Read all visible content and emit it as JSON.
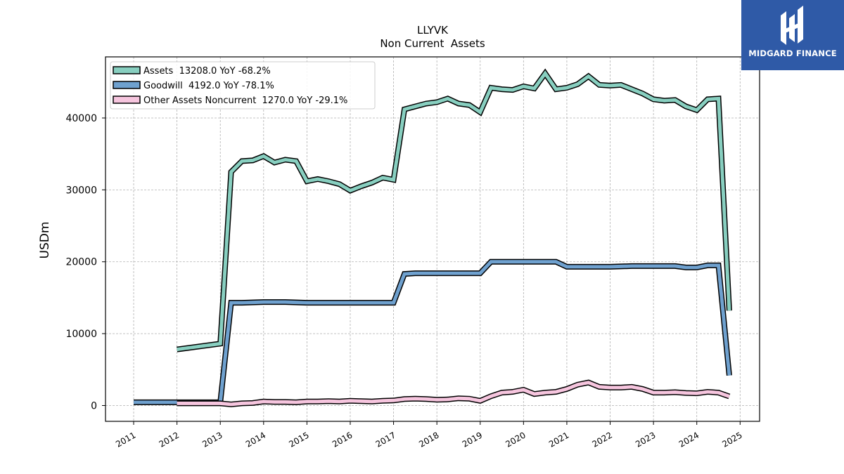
{
  "brand": {
    "name": "MIDGARD FINANCE",
    "bg_color": "#2f5aa7"
  },
  "chart_data": {
    "type": "line",
    "title": "LLYVK",
    "subtitle": "Non Current  Assets",
    "xlabel": "",
    "ylabel": "USDm",
    "xlim": [
      2010.35,
      2025.45
    ],
    "ylim": [
      -2200,
      48500
    ],
    "x_ticks": [
      "2011",
      "2012",
      "2013",
      "2014",
      "2015",
      "2016",
      "2017",
      "2018",
      "2019",
      "2020",
      "2021",
      "2022",
      "2023",
      "2024",
      "2025"
    ],
    "y_ticks": [
      0,
      10000,
      20000,
      30000,
      40000
    ],
    "y_tick_labels": [
      "0",
      "10000",
      "20000",
      "30000",
      "40000"
    ],
    "grid": true,
    "legend_position": "top-left",
    "series": [
      {
        "name": "Assets  13208.0 YoY -68.2%",
        "color": "#88cfc0",
        "points": [
          [
            2012.0,
            7800
          ],
          [
            2013.0,
            8600
          ],
          [
            2013.25,
            32500
          ],
          [
            2013.5,
            34000
          ],
          [
            2013.75,
            34100
          ],
          [
            2014.0,
            34700
          ],
          [
            2014.25,
            33800
          ],
          [
            2014.5,
            34200
          ],
          [
            2014.75,
            34000
          ],
          [
            2015.0,
            31200
          ],
          [
            2015.25,
            31500
          ],
          [
            2015.5,
            31200
          ],
          [
            2015.75,
            30800
          ],
          [
            2016.0,
            29900
          ],
          [
            2016.25,
            30500
          ],
          [
            2016.5,
            31000
          ],
          [
            2016.75,
            31700
          ],
          [
            2017.0,
            31400
          ],
          [
            2017.25,
            41200
          ],
          [
            2017.5,
            41600
          ],
          [
            2017.75,
            42000
          ],
          [
            2018.0,
            42200
          ],
          [
            2018.25,
            42700
          ],
          [
            2018.5,
            42000
          ],
          [
            2018.75,
            41800
          ],
          [
            2019.0,
            40800
          ],
          [
            2019.25,
            44200
          ],
          [
            2019.5,
            44000
          ],
          [
            2019.75,
            43900
          ],
          [
            2020.0,
            44400
          ],
          [
            2020.25,
            44100
          ],
          [
            2020.5,
            46200
          ],
          [
            2020.75,
            44000
          ],
          [
            2021.0,
            44200
          ],
          [
            2021.25,
            44700
          ],
          [
            2021.5,
            45800
          ],
          [
            2021.75,
            44600
          ],
          [
            2022.0,
            44500
          ],
          [
            2022.25,
            44600
          ],
          [
            2022.5,
            44000
          ],
          [
            2022.75,
            43400
          ],
          [
            2023.0,
            42600
          ],
          [
            2023.25,
            42400
          ],
          [
            2023.5,
            42500
          ],
          [
            2023.75,
            41600
          ],
          [
            2024.0,
            41100
          ],
          [
            2024.25,
            42600
          ],
          [
            2024.5,
            42700
          ],
          [
            2024.75,
            13208
          ]
        ]
      },
      {
        "name": "Goodwill  4192.0 YoY -78.1%",
        "color": "#6fa1cf",
        "points": [
          [
            2011.0,
            450
          ],
          [
            2013.0,
            450
          ],
          [
            2013.25,
            14300
          ],
          [
            2013.5,
            14300
          ],
          [
            2014.0,
            14400
          ],
          [
            2014.5,
            14400
          ],
          [
            2015.0,
            14300
          ],
          [
            2016.0,
            14300
          ],
          [
            2016.5,
            14300
          ],
          [
            2017.0,
            14300
          ],
          [
            2017.25,
            18300
          ],
          [
            2017.5,
            18400
          ],
          [
            2018.0,
            18400
          ],
          [
            2018.5,
            18400
          ],
          [
            2019.0,
            18400
          ],
          [
            2019.25,
            20000
          ],
          [
            2019.75,
            20000
          ],
          [
            2020.0,
            20000
          ],
          [
            2020.5,
            20000
          ],
          [
            2020.75,
            20000
          ],
          [
            2021.0,
            19300
          ],
          [
            2021.5,
            19300
          ],
          [
            2022.0,
            19300
          ],
          [
            2022.5,
            19400
          ],
          [
            2023.0,
            19400
          ],
          [
            2023.5,
            19400
          ],
          [
            2023.75,
            19200
          ],
          [
            2024.0,
            19200
          ],
          [
            2024.25,
            19500
          ],
          [
            2024.5,
            19500
          ],
          [
            2024.75,
            4192
          ]
        ]
      },
      {
        "name": "Other Assets Noncurrent  1270.0 YoY -29.1%",
        "color": "#f6c5de",
        "points": [
          [
            2012.0,
            300
          ],
          [
            2013.0,
            300
          ],
          [
            2013.25,
            150
          ],
          [
            2013.5,
            300
          ],
          [
            2013.75,
            350
          ],
          [
            2014.0,
            550
          ],
          [
            2014.25,
            500
          ],
          [
            2014.5,
            500
          ],
          [
            2014.75,
            450
          ],
          [
            2015.0,
            550
          ],
          [
            2015.25,
            550
          ],
          [
            2015.5,
            600
          ],
          [
            2015.75,
            550
          ],
          [
            2016.0,
            650
          ],
          [
            2016.25,
            600
          ],
          [
            2016.5,
            550
          ],
          [
            2016.75,
            650
          ],
          [
            2017.0,
            700
          ],
          [
            2017.25,
            900
          ],
          [
            2017.5,
            950
          ],
          [
            2017.75,
            900
          ],
          [
            2018.0,
            800
          ],
          [
            2018.25,
            850
          ],
          [
            2018.5,
            1000
          ],
          [
            2018.75,
            950
          ],
          [
            2019.0,
            650
          ],
          [
            2019.25,
            1300
          ],
          [
            2019.5,
            1800
          ],
          [
            2019.75,
            1900
          ],
          [
            2020.0,
            2200
          ],
          [
            2020.25,
            1600
          ],
          [
            2020.5,
            1800
          ],
          [
            2020.75,
            1900
          ],
          [
            2021.0,
            2300
          ],
          [
            2021.25,
            2900
          ],
          [
            2021.5,
            3200
          ],
          [
            2021.75,
            2600
          ],
          [
            2022.0,
            2500
          ],
          [
            2022.25,
            2500
          ],
          [
            2022.5,
            2600
          ],
          [
            2022.75,
            2300
          ],
          [
            2023.0,
            1800
          ],
          [
            2023.25,
            1800
          ],
          [
            2023.5,
            1850
          ],
          [
            2023.75,
            1750
          ],
          [
            2024.0,
            1700
          ],
          [
            2024.25,
            1900
          ],
          [
            2024.5,
            1800
          ],
          [
            2024.75,
            1270
          ]
        ]
      }
    ]
  }
}
